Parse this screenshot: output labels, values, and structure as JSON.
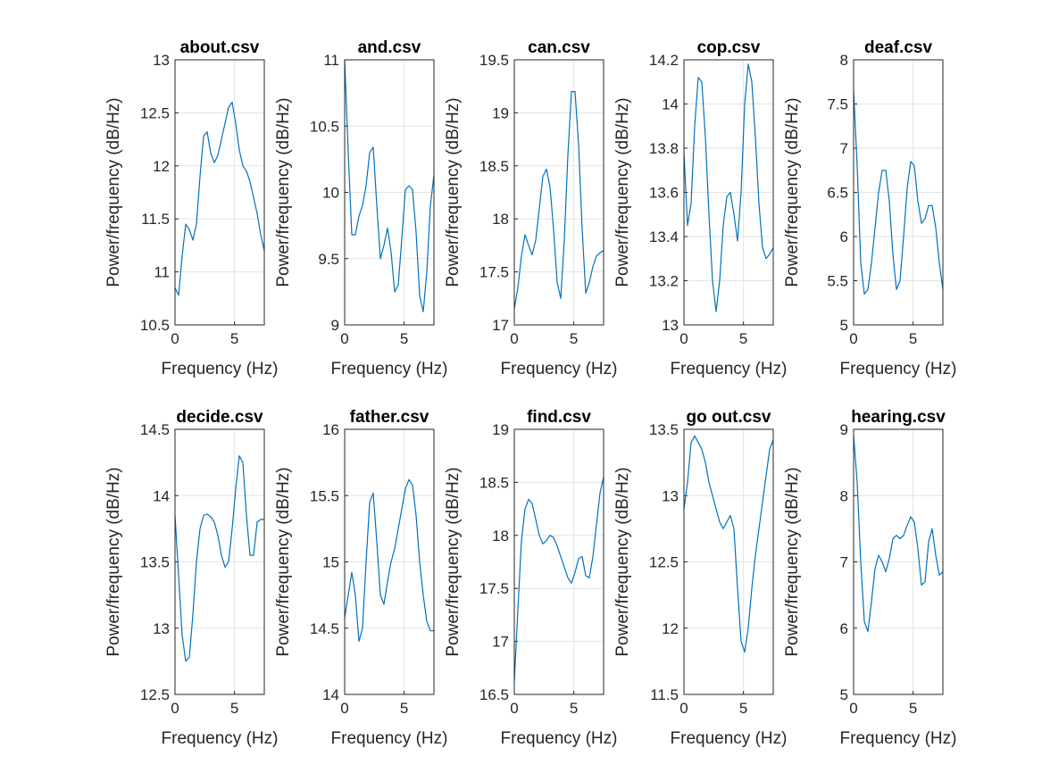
{
  "figure": {
    "xlabel": "Frequency (Hz)",
    "ylabel": "Power/frequency (dB/Hz)",
    "line_color": "#0072BD",
    "grid": true
  },
  "chart_data": [
    {
      "type": "line",
      "title": "about.csv",
      "xlabel": "Frequency (Hz)",
      "ylabel": "Power/frequency (dB/Hz)",
      "xlim": [
        0,
        7.5
      ],
      "ylim": [
        10.5,
        13
      ],
      "xticks": [
        "0",
        "5"
      ],
      "yticks": [
        "10.5",
        "11",
        "11.5",
        "12",
        "12.5",
        "13"
      ],
      "x": [
        0,
        0.3,
        0.6,
        0.9,
        1.2,
        1.5,
        1.8,
        2.1,
        2.4,
        2.7,
        3.0,
        3.3,
        3.6,
        3.9,
        4.2,
        4.5,
        4.8,
        5.1,
        5.4,
        5.7,
        6.0,
        6.3,
        6.6,
        6.9,
        7.2,
        7.5
      ],
      "y": [
        10.85,
        10.78,
        11.15,
        11.45,
        11.4,
        11.3,
        11.45,
        11.9,
        12.28,
        12.32,
        12.12,
        12.03,
        12.1,
        12.25,
        12.4,
        12.55,
        12.6,
        12.4,
        12.15,
        12.0,
        11.95,
        11.85,
        11.7,
        11.55,
        11.35,
        11.2
      ]
    },
    {
      "type": "line",
      "title": "and.csv",
      "xlabel": "Frequency (Hz)",
      "ylabel": "Power/frequency (dB/Hz)",
      "xlim": [
        0,
        7.5
      ],
      "ylim": [
        9,
        11
      ],
      "xticks": [
        "0",
        "5"
      ],
      "yticks": [
        "9",
        "9.5",
        "10",
        "10.5",
        "11"
      ],
      "x": [
        0,
        0.3,
        0.6,
        0.9,
        1.2,
        1.5,
        1.8,
        2.1,
        2.4,
        2.7,
        3.0,
        3.3,
        3.6,
        3.9,
        4.2,
        4.5,
        4.8,
        5.1,
        5.4,
        5.7,
        6.0,
        6.3,
        6.6,
        6.9,
        7.2,
        7.5
      ],
      "y": [
        11.0,
        10.3,
        9.68,
        9.68,
        9.82,
        9.9,
        10.05,
        10.3,
        10.34,
        9.9,
        9.5,
        9.6,
        9.73,
        9.55,
        9.25,
        9.3,
        9.65,
        10.02,
        10.05,
        10.02,
        9.7,
        9.22,
        9.1,
        9.4,
        9.9,
        10.13
      ]
    },
    {
      "type": "line",
      "title": "can.csv",
      "xlabel": "Frequency (Hz)",
      "ylabel": "Power/frequency (dB/Hz)",
      "xlim": [
        0,
        7.5
      ],
      "ylim": [
        17,
        19.5
      ],
      "xticks": [
        "0",
        "5"
      ],
      "yticks": [
        "17",
        "17.5",
        "18",
        "18.5",
        "19",
        "19.5"
      ],
      "x": [
        0,
        0.3,
        0.6,
        0.9,
        1.2,
        1.5,
        1.8,
        2.1,
        2.4,
        2.7,
        3.0,
        3.3,
        3.6,
        3.9,
        4.2,
        4.5,
        4.8,
        5.1,
        5.4,
        5.7,
        6.0,
        6.3,
        6.6,
        6.9,
        7.2,
        7.5
      ],
      "y": [
        17.15,
        17.35,
        17.65,
        17.85,
        17.75,
        17.66,
        17.8,
        18.1,
        18.4,
        18.47,
        18.3,
        17.9,
        17.4,
        17.25,
        17.8,
        18.6,
        19.2,
        19.2,
        18.7,
        17.9,
        17.3,
        17.4,
        17.55,
        17.65,
        17.68,
        17.7
      ]
    },
    {
      "type": "line",
      "title": "cop.csv",
      "xlabel": "Frequency (Hz)",
      "ylabel": "Power/frequency (dB/Hz)",
      "xlim": [
        0,
        7.5
      ],
      "ylim": [
        13,
        14.2
      ],
      "xticks": [
        "0",
        "5"
      ],
      "yticks": [
        "13",
        "13.2",
        "13.4",
        "13.6",
        "13.8",
        "14",
        "14.2"
      ],
      "x": [
        0,
        0.3,
        0.6,
        0.9,
        1.2,
        1.5,
        1.8,
        2.1,
        2.4,
        2.7,
        3.0,
        3.3,
        3.6,
        3.9,
        4.2,
        4.5,
        4.8,
        5.1,
        5.4,
        5.7,
        6.0,
        6.3,
        6.6,
        6.9,
        7.2,
        7.5
      ],
      "y": [
        13.78,
        13.45,
        13.55,
        13.9,
        14.12,
        14.1,
        13.85,
        13.5,
        13.2,
        13.06,
        13.2,
        13.45,
        13.58,
        13.6,
        13.5,
        13.38,
        13.6,
        14.0,
        14.18,
        14.1,
        13.85,
        13.55,
        13.35,
        13.3,
        13.32,
        13.35
      ]
    },
    {
      "type": "line",
      "title": "deaf.csv",
      "xlabel": "Frequency (Hz)",
      "ylabel": "Power/frequency (dB/Hz)",
      "xlim": [
        0,
        7.5
      ],
      "ylim": [
        5,
        8
      ],
      "xticks": [
        "0",
        "5"
      ],
      "yticks": [
        "5",
        "5.5",
        "6",
        "6.5",
        "7",
        "7.5",
        "8"
      ],
      "x": [
        0,
        0.3,
        0.6,
        0.9,
        1.2,
        1.5,
        1.8,
        2.1,
        2.4,
        2.7,
        3.0,
        3.3,
        3.6,
        3.9,
        4.2,
        4.5,
        4.8,
        5.1,
        5.4,
        5.7,
        6.0,
        6.3,
        6.6,
        6.9,
        7.2,
        7.5
      ],
      "y": [
        7.65,
        6.8,
        5.7,
        5.35,
        5.4,
        5.7,
        6.1,
        6.5,
        6.75,
        6.75,
        6.4,
        5.8,
        5.4,
        5.5,
        6.0,
        6.55,
        6.85,
        6.8,
        6.4,
        6.15,
        6.2,
        6.35,
        6.35,
        6.1,
        5.7,
        5.4
      ]
    },
    {
      "type": "line",
      "title": "decide.csv",
      "xlabel": "Frequency (Hz)",
      "ylabel": "Power/frequency (dB/Hz)",
      "xlim": [
        0,
        7.5
      ],
      "ylim": [
        12.5,
        14.5
      ],
      "xticks": [
        "0",
        "5"
      ],
      "yticks": [
        "12.5",
        "13",
        "13.5",
        "14",
        "14.5"
      ],
      "x": [
        0,
        0.3,
        0.6,
        0.9,
        1.2,
        1.5,
        1.8,
        2.1,
        2.4,
        2.7,
        3.0,
        3.3,
        3.6,
        3.9,
        4.2,
        4.5,
        4.8,
        5.1,
        5.4,
        5.7,
        6.0,
        6.3,
        6.6,
        6.9,
        7.2,
        7.5
      ],
      "y": [
        13.85,
        13.4,
        12.95,
        12.75,
        12.78,
        13.1,
        13.5,
        13.75,
        13.85,
        13.86,
        13.84,
        13.8,
        13.7,
        13.55,
        13.46,
        13.5,
        13.75,
        14.05,
        14.3,
        14.25,
        13.85,
        13.55,
        13.55,
        13.8,
        13.82,
        13.82
      ]
    },
    {
      "type": "line",
      "title": "father.csv",
      "xlabel": "Frequency (Hz)",
      "ylabel": "Power/frequency (dB/Hz)",
      "xlim": [
        0,
        7.5
      ],
      "ylim": [
        14,
        16
      ],
      "xticks": [
        "0",
        "5"
      ],
      "yticks": [
        "14",
        "14.5",
        "15",
        "15.5",
        "16"
      ],
      "x": [
        0,
        0.3,
        0.6,
        0.9,
        1.2,
        1.5,
        1.8,
        2.1,
        2.4,
        2.7,
        3.0,
        3.3,
        3.6,
        3.9,
        4.2,
        4.5,
        4.8,
        5.1,
        5.4,
        5.7,
        6.0,
        6.3,
        6.6,
        6.9,
        7.2,
        7.5
      ],
      "y": [
        14.58,
        14.75,
        14.92,
        14.75,
        14.4,
        14.5,
        15.0,
        15.45,
        15.52,
        15.15,
        14.75,
        14.68,
        14.85,
        15.0,
        15.1,
        15.25,
        15.4,
        15.55,
        15.62,
        15.58,
        15.35,
        15.0,
        14.75,
        14.55,
        14.48,
        14.48
      ]
    },
    {
      "type": "line",
      "title": "find.csv",
      "xlabel": "Frequency (Hz)",
      "ylabel": "Power/frequency (dB/Hz)",
      "xlim": [
        0,
        7.5
      ],
      "ylim": [
        16.5,
        19
      ],
      "xticks": [
        "0",
        "5"
      ],
      "yticks": [
        "16.5",
        "17",
        "17.5",
        "18",
        "18.5",
        "19"
      ],
      "x": [
        0,
        0.3,
        0.6,
        0.9,
        1.2,
        1.5,
        1.8,
        2.1,
        2.4,
        2.7,
        3.0,
        3.3,
        3.6,
        3.9,
        4.2,
        4.5,
        4.8,
        5.1,
        5.4,
        5.7,
        6.0,
        6.3,
        6.6,
        6.9,
        7.2,
        7.5
      ],
      "y": [
        16.62,
        17.3,
        17.95,
        18.25,
        18.34,
        18.3,
        18.15,
        18.0,
        17.92,
        17.95,
        18.0,
        17.98,
        17.9,
        17.8,
        17.7,
        17.6,
        17.55,
        17.65,
        17.78,
        17.8,
        17.62,
        17.6,
        17.8,
        18.1,
        18.4,
        18.55
      ]
    },
    {
      "type": "line",
      "title": "go out.csv",
      "xlabel": "Frequency (Hz)",
      "ylabel": "Power/frequency (dB/Hz)",
      "xlim": [
        0,
        7.5
      ],
      "ylim": [
        11.5,
        13.5
      ],
      "xticks": [
        "0",
        "5"
      ],
      "yticks": [
        "11.5",
        "12",
        "12.5",
        "13",
        "13.5"
      ],
      "x": [
        0,
        0.3,
        0.6,
        0.9,
        1.2,
        1.5,
        1.8,
        2.1,
        2.4,
        2.7,
        3.0,
        3.3,
        3.6,
        3.9,
        4.2,
        4.5,
        4.8,
        5.1,
        5.4,
        5.7,
        6.0,
        6.3,
        6.6,
        6.9,
        7.2,
        7.5
      ],
      "y": [
        12.9,
        13.1,
        13.4,
        13.45,
        13.4,
        13.35,
        13.25,
        13.1,
        13.0,
        12.9,
        12.8,
        12.75,
        12.8,
        12.85,
        12.75,
        12.3,
        11.9,
        11.82,
        12.0,
        12.3,
        12.55,
        12.75,
        12.95,
        13.15,
        13.35,
        13.42
      ]
    },
    {
      "type": "line",
      "title": "hearing.csv",
      "xlabel": "Frequency (Hz)",
      "ylabel": "Power/frequency (dB/Hz)",
      "xlim": [
        0,
        7.5
      ],
      "ylim": [
        5,
        9
      ],
      "xticks": [
        "0",
        "5"
      ],
      "yticks": [
        "5",
        "6",
        "7",
        "8",
        "9"
      ],
      "x": [
        0,
        0.3,
        0.6,
        0.9,
        1.2,
        1.5,
        1.8,
        2.1,
        2.4,
        2.7,
        3.0,
        3.3,
        3.6,
        3.9,
        4.2,
        4.5,
        4.8,
        5.1,
        5.4,
        5.7,
        6.0,
        6.3,
        6.6,
        6.9,
        7.2,
        7.5
      ],
      "y": [
        8.9,
        8.2,
        7.0,
        6.1,
        5.95,
        6.4,
        6.9,
        7.1,
        7.0,
        6.85,
        7.05,
        7.35,
        7.4,
        7.35,
        7.4,
        7.55,
        7.68,
        7.6,
        7.2,
        6.65,
        6.7,
        7.3,
        7.5,
        7.1,
        6.8,
        6.85
      ]
    }
  ]
}
